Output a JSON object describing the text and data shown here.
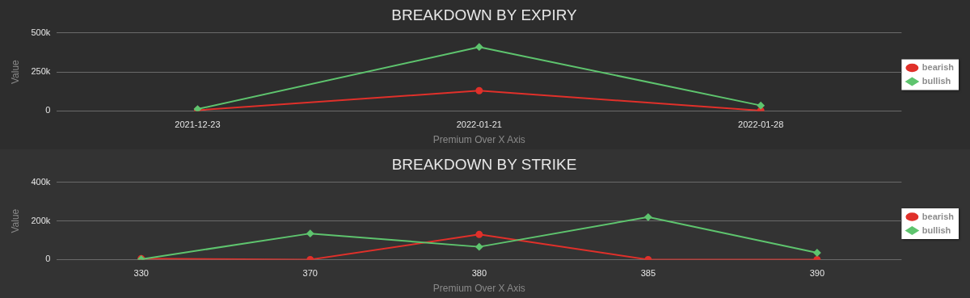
{
  "chart_data": [
    {
      "type": "line",
      "title": "BREAKDOWN BY EXPIRY",
      "xlabel": "Premium Over X Axis",
      "ylabel": "Value",
      "categories": [
        "2021-12-23",
        "2022-01-21",
        "2022-01-28"
      ],
      "series": [
        {
          "name": "bearish",
          "color": "#e0302a",
          "marker": "circle",
          "values": [
            5000,
            130000,
            2000
          ]
        },
        {
          "name": "bullish",
          "color": "#5ec46e",
          "marker": "diamond",
          "values": [
            12000,
            410000,
            35000
          ]
        }
      ],
      "ylim": [
        0,
        500000
      ],
      "yticks": [
        {
          "value": 0,
          "label": "0"
        },
        {
          "value": 250000,
          "label": "250k"
        },
        {
          "value": 500000,
          "label": "500k"
        }
      ],
      "grid": "y",
      "legend": "right"
    },
    {
      "type": "line",
      "title": "BREAKDOWN BY STRIKE",
      "xlabel": "Premium Over X Axis",
      "ylabel": "Value",
      "categories": [
        "330",
        "370",
        "380",
        "385",
        "390"
      ],
      "series": [
        {
          "name": "bearish",
          "color": "#e0302a",
          "marker": "circle",
          "values": [
            5000,
            0,
            130000,
            0,
            0
          ]
        },
        {
          "name": "bullish",
          "color": "#5ec46e",
          "marker": "diamond",
          "values": [
            2000,
            135000,
            66000,
            220000,
            35000
          ]
        }
      ],
      "ylim": [
        0,
        400000
      ],
      "yticks": [
        {
          "value": 0,
          "label": "0"
        },
        {
          "value": 200000,
          "label": "200k"
        },
        {
          "value": 400000,
          "label": "400k"
        }
      ],
      "grid": "y",
      "legend": "right"
    }
  ]
}
